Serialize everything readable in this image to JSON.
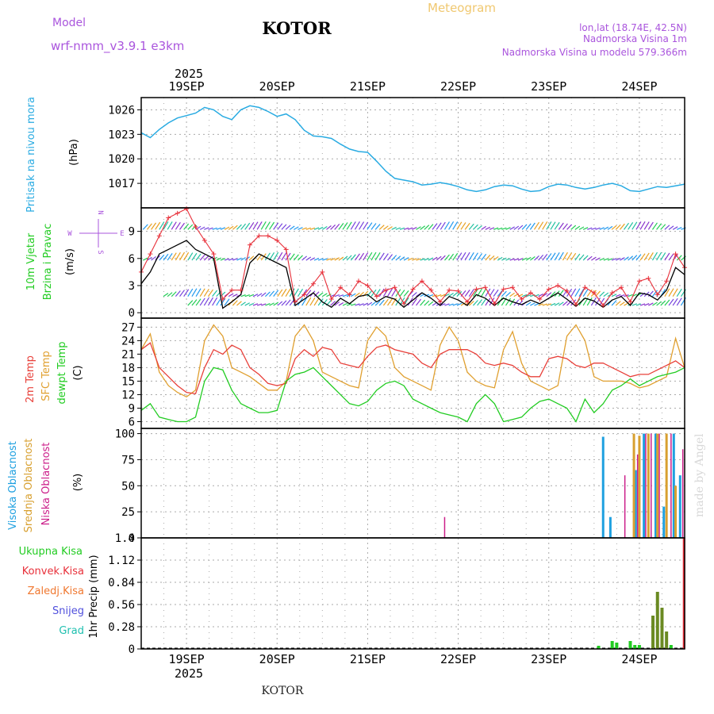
{
  "header": {
    "model_label": "Model",
    "model_name": "wrf-nmm_v3.9.1  e3km",
    "station": "KOTOR",
    "meteogram": "Meteogram",
    "lonlat": "lon,lat (18.74E, 42.5N)",
    "elevation": "Nadmorska Visina 1m",
    "model_elevation": "Nadmorska Visina u modelu 579.366m",
    "footer_station": "KOTOR",
    "credit": "made by Angel"
  },
  "time_axis": {
    "year": "2025",
    "days": [
      "19SEP",
      "20SEP",
      "21SEP",
      "22SEP",
      "23SEP",
      "24SEP"
    ]
  },
  "colors": {
    "pressure": "#29abe2",
    "wind_speed": "#000000",
    "gust": "#e8303a",
    "t2m": "#e8403a",
    "sfc": "#e0a030",
    "dew": "#22cc22",
    "cloud_high": "#1ea0e0",
    "cloud_mid": "#d8a030",
    "cloud_low": "#cc1f8a",
    "precip_total": "#22cc22",
    "precip_conv": "#e8303a",
    "precip_frz": "#f07830",
    "snow": "#5050dd",
    "grad": "#20c0b0"
  },
  "chart_data": [
    {
      "type": "line",
      "panel": "pressure",
      "title": "Pritisak na nivou mora",
      "ylabel": "(hPa)",
      "ylim": [
        1014,
        1027.5
      ],
      "yticks": [
        1017,
        1020,
        1023,
        1026
      ],
      "x_unit": "days from 19SEP 00UTC",
      "xlim": [
        -0.5,
        5.5
      ],
      "x": [
        -0.5,
        -0.4,
        -0.3,
        -0.2,
        -0.1,
        0,
        0.1,
        0.2,
        0.3,
        0.4,
        0.5,
        0.6,
        0.7,
        0.8,
        0.9,
        1.0,
        1.1,
        1.2,
        1.3,
        1.4,
        1.5,
        1.6,
        1.7,
        1.8,
        1.9,
        2.0,
        2.1,
        2.2,
        2.3,
        2.4,
        2.5,
        2.6,
        2.7,
        2.8,
        2.9,
        3.0,
        3.1,
        3.2,
        3.3,
        3.4,
        3.5,
        3.6,
        3.7,
        3.8,
        3.9,
        4.0,
        4.1,
        4.2,
        4.3,
        4.4,
        4.5,
        4.6,
        4.7,
        4.8,
        4.9,
        5.0,
        5.1,
        5.2,
        5.3,
        5.4,
        5.5
      ],
      "y": [
        1023.2,
        1022.6,
        1023.6,
        1024.4,
        1025.0,
        1025.3,
        1025.6,
        1026.3,
        1026.0,
        1025.2,
        1024.8,
        1026.0,
        1026.5,
        1026.3,
        1025.8,
        1025.2,
        1025.5,
        1024.8,
        1023.5,
        1022.8,
        1022.7,
        1022.5,
        1021.8,
        1021.2,
        1020.9,
        1020.8,
        1019.7,
        1018.5,
        1017.6,
        1017.4,
        1017.2,
        1016.8,
        1016.9,
        1017.1,
        1016.9,
        1016.6,
        1016.2,
        1016.0,
        1016.2,
        1016.6,
        1016.8,
        1016.7,
        1016.3,
        1016.0,
        1016.1,
        1016.6,
        1016.9,
        1016.8,
        1016.5,
        1016.3,
        1016.5,
        1016.8,
        1017.0,
        1016.7,
        1016.1,
        1016.0,
        1016.3,
        1016.6,
        1016.5,
        1016.7,
        1016.9
      ]
    },
    {
      "type": "line",
      "panel": "wind",
      "title": "10m Vjetar",
      "subtitle": "Brzina i Pravac",
      "ylabel": "(m/s)",
      "compass": [
        "N",
        "W",
        "E",
        "S"
      ],
      "ylim": [
        -0.6,
        11.6
      ],
      "yticks": [
        0,
        3,
        6,
        9
      ],
      "xlim": [
        -0.5,
        5.5
      ],
      "barb_levels": [
        0.8,
        1.8,
        5.8,
        9.2
      ],
      "series": [
        {
          "name": "speed",
          "x": [
            -0.5,
            -0.4,
            -0.3,
            -0.2,
            -0.1,
            0,
            0.1,
            0.2,
            0.3,
            0.4,
            0.5,
            0.6,
            0.7,
            0.8,
            0.9,
            1.0,
            1.1,
            1.2,
            1.3,
            1.4,
            1.5,
            1.6,
            1.7,
            1.8,
            1.9,
            2.0,
            2.1,
            2.2,
            2.3,
            2.4,
            2.5,
            2.6,
            2.7,
            2.8,
            2.9,
            3.0,
            3.1,
            3.2,
            3.3,
            3.4,
            3.5,
            3.6,
            3.7,
            3.8,
            3.9,
            4.0,
            4.1,
            4.2,
            4.3,
            4.4,
            4.5,
            4.6,
            4.7,
            4.8,
            4.9,
            5.0,
            5.1,
            5.2,
            5.3,
            5.4,
            5.5
          ],
          "values": [
            3.2,
            4.5,
            6.5,
            7.0,
            7.5,
            8.0,
            7.0,
            6.5,
            6.0,
            0.5,
            1.2,
            2.0,
            5.5,
            6.5,
            6.0,
            5.5,
            5.0,
            0.8,
            1.5,
            2.2,
            1.2,
            0.6,
            1.6,
            1.0,
            1.8,
            2.0,
            1.2,
            1.8,
            1.5,
            0.6,
            1.4,
            2.2,
            1.6,
            0.8,
            1.8,
            1.4,
            0.8,
            2.0,
            1.6,
            0.8,
            1.6,
            1.2,
            0.9,
            1.4,
            1.0,
            1.6,
            2.2,
            1.5,
            0.7,
            1.6,
            1.3,
            0.6,
            1.4,
            1.8,
            0.8,
            2.2,
            2.0,
            1.4,
            2.5,
            5.0,
            4.2
          ]
        },
        {
          "name": "gust",
          "x": [
            -0.5,
            -0.4,
            -0.3,
            -0.2,
            -0.1,
            0,
            0.1,
            0.2,
            0.3,
            0.4,
            0.5,
            0.6,
            0.7,
            0.8,
            0.9,
            1.0,
            1.1,
            1.2,
            1.3,
            1.4,
            1.5,
            1.6,
            1.7,
            1.8,
            1.9,
            2.0,
            2.1,
            2.2,
            2.3,
            2.4,
            2.5,
            2.6,
            2.7,
            2.8,
            2.9,
            3.0,
            3.1,
            3.2,
            3.3,
            3.4,
            3.5,
            3.6,
            3.7,
            3.8,
            3.9,
            4.0,
            4.1,
            4.2,
            4.3,
            4.4,
            4.5,
            4.6,
            4.7,
            4.8,
            4.9,
            5.0,
            5.1,
            5.2,
            5.3,
            5.4,
            5.5
          ],
          "values": [
            4.5,
            6.5,
            8.5,
            10.5,
            11.0,
            11.5,
            9.5,
            8.0,
            6.5,
            1.5,
            2.5,
            2.5,
            7.5,
            8.5,
            8.5,
            8.0,
            7.0,
            1.2,
            2.0,
            3.2,
            4.5,
            1.5,
            2.8,
            2.0,
            3.5,
            3.0,
            1.8,
            2.5,
            2.8,
            1.0,
            2.6,
            3.5,
            2.5,
            1.2,
            2.5,
            2.4,
            1.2,
            2.6,
            2.8,
            1.0,
            2.6,
            2.8,
            1.5,
            2.2,
            1.5,
            2.6,
            3.0,
            2.4,
            0.9,
            2.8,
            2.2,
            0.8,
            2.2,
            2.8,
            1.2,
            3.5,
            3.8,
            2.0,
            3.5,
            6.5,
            5.0
          ]
        }
      ]
    },
    {
      "type": "line",
      "panel": "temperature",
      "title": "2m Temp",
      "subtitle": "SFC Temp",
      "subtitle2": "dewpt Temp",
      "ylabel": "(C)",
      "ylim": [
        4.5,
        29
      ],
      "yticks": [
        6,
        9,
        12,
        15,
        18,
        21,
        24,
        27
      ],
      "xlim": [
        -0.5,
        5.5
      ],
      "series": [
        {
          "name": "t2m",
          "x": [
            -0.5,
            -0.4,
            -0.3,
            -0.2,
            -0.1,
            0,
            0.1,
            0.2,
            0.3,
            0.4,
            0.5,
            0.6,
            0.7,
            0.8,
            0.9,
            1.0,
            1.1,
            1.2,
            1.3,
            1.4,
            1.5,
            1.6,
            1.7,
            1.8,
            1.9,
            2.0,
            2.1,
            2.2,
            2.3,
            2.4,
            2.5,
            2.6,
            2.7,
            2.8,
            2.9,
            3.0,
            3.1,
            3.2,
            3.3,
            3.4,
            3.5,
            3.6,
            3.7,
            3.8,
            3.9,
            4.0,
            4.1,
            4.2,
            4.3,
            4.4,
            4.5,
            4.6,
            4.7,
            4.8,
            4.9,
            5.0,
            5.1,
            5.2,
            5.3,
            5.4,
            5.5
          ],
          "values": [
            22,
            23.5,
            18,
            16,
            14,
            12.5,
            12.2,
            18,
            22,
            21,
            23,
            22,
            18,
            16.5,
            14.5,
            14,
            14.5,
            20,
            22,
            20.5,
            22.5,
            22,
            19,
            18.5,
            18,
            20.5,
            22.5,
            23,
            22,
            21.5,
            21,
            19,
            18,
            21,
            22,
            22,
            22,
            21,
            19,
            18.5,
            19,
            18.5,
            17,
            16,
            16,
            20,
            20.5,
            20,
            18.5,
            18,
            19,
            19,
            18,
            17,
            16,
            16.5,
            16.5,
            17.5,
            18.5,
            19.5,
            18
          ]
        },
        {
          "name": "sfc",
          "x": [
            -0.5,
            -0.4,
            -0.3,
            -0.2,
            -0.1,
            0,
            0.1,
            0.2,
            0.3,
            0.4,
            0.5,
            0.6,
            0.7,
            0.8,
            0.9,
            1.0,
            1.1,
            1.2,
            1.3,
            1.4,
            1.5,
            1.6,
            1.7,
            1.8,
            1.9,
            2.0,
            2.1,
            2.2,
            2.3,
            2.4,
            2.5,
            2.6,
            2.7,
            2.8,
            2.9,
            3.0,
            3.1,
            3.2,
            3.3,
            3.4,
            3.5,
            3.6,
            3.7,
            3.8,
            3.9,
            4.0,
            4.1,
            4.2,
            4.3,
            4.4,
            4.5,
            4.6,
            4.7,
            4.8,
            4.9,
            5.0,
            5.1,
            5.2,
            5.3,
            5.4,
            5.5
          ],
          "values": [
            22,
            25.5,
            17,
            14,
            12.5,
            11.5,
            13,
            24,
            27.5,
            25,
            18,
            17,
            16,
            14.5,
            13,
            13,
            15,
            25,
            27.5,
            24,
            17,
            16,
            15,
            14,
            13.5,
            24,
            27,
            25,
            18,
            16,
            15,
            14,
            13,
            23,
            27,
            24,
            17,
            15,
            14,
            13.5,
            22,
            26,
            19,
            15,
            14,
            13,
            14,
            25,
            27.5,
            24,
            16,
            15,
            15,
            15,
            14.5,
            13.5,
            14,
            15,
            16,
            24.5,
            18
          ]
        },
        {
          "name": "dew",
          "x": [
            -0.5,
            -0.4,
            -0.3,
            -0.2,
            -0.1,
            0,
            0.1,
            0.2,
            0.3,
            0.4,
            0.5,
            0.6,
            0.7,
            0.8,
            0.9,
            1.0,
            1.1,
            1.2,
            1.3,
            1.4,
            1.5,
            1.6,
            1.7,
            1.8,
            1.9,
            2.0,
            2.1,
            2.2,
            2.3,
            2.4,
            2.5,
            2.6,
            2.7,
            2.8,
            2.9,
            3.0,
            3.1,
            3.2,
            3.3,
            3.4,
            3.5,
            3.6,
            3.7,
            3.8,
            3.9,
            4.0,
            4.1,
            4.2,
            4.3,
            4.4,
            4.5,
            4.6,
            4.7,
            4.8,
            4.9,
            5.0,
            5.1,
            5.2,
            5.3,
            5.4,
            5.5
          ],
          "values": [
            8.5,
            10,
            7,
            6.5,
            6,
            6,
            7,
            15,
            18,
            17.5,
            13,
            10,
            9,
            8,
            8,
            8.5,
            15,
            16.5,
            17,
            18,
            16,
            14,
            12,
            10,
            9.5,
            10.5,
            13,
            14.5,
            15,
            14,
            11,
            10,
            9,
            8,
            7.5,
            7,
            6,
            10,
            12,
            10,
            6,
            6.5,
            7,
            9,
            10.5,
            11,
            10,
            9,
            6,
            11,
            8,
            10,
            13,
            14,
            15.5,
            14,
            15,
            16,
            16.5,
            17,
            18
          ]
        }
      ]
    },
    {
      "type": "bar",
      "panel": "clouds",
      "title": "Visoka Oblacnost",
      "subtitle": "Srednja Oblacnost",
      "subtitle2": "Niska Oblacnost",
      "ylabel": "(%)",
      "ylim": [
        0,
        105
      ],
      "yticks": [
        0,
        25,
        50,
        75,
        100
      ],
      "xlim": [
        -0.5,
        5.5
      ],
      "series": [
        {
          "name": "high",
          "x": [
            4.6,
            4.68,
            4.96,
            5.05,
            5.18,
            5.27,
            5.38,
            5.45
          ],
          "values": [
            97,
            20,
            65,
            100,
            100,
            30,
            100,
            60
          ]
        },
        {
          "name": "mid",
          "x": [
            4.94,
            5.0,
            5.1,
            5.2,
            5.3,
            5.4
          ],
          "values": [
            100,
            98,
            100,
            100,
            100,
            50
          ]
        },
        {
          "name": "low",
          "x": [
            2.85,
            4.84,
            4.98,
            5.07,
            5.13,
            5.22,
            5.35,
            5.48
          ],
          "values": [
            20,
            60,
            80,
            100,
            100,
            100,
            100,
            85
          ]
        }
      ]
    },
    {
      "type": "bar",
      "panel": "precip",
      "title": "Ukupna Kisa",
      "labels": [
        "Konvek.Kisa",
        "Zaledj.Kisa",
        "Snijeg",
        "Grad"
      ],
      "ylabel": "1hr Precip (mm)",
      "ylim": [
        0,
        1.4
      ],
      "yticks": [
        0,
        0.28,
        0.56,
        0.84,
        1.12,
        1.4
      ],
      "xlim": [
        -0.5,
        5.5
      ],
      "series": [
        {
          "name": "total",
          "x": [
            4.55,
            4.7,
            4.75,
            4.9,
            4.95,
            5.0,
            5.15,
            5.2,
            5.25,
            5.3,
            5.35
          ],
          "values": [
            0.04,
            0.1,
            0.08,
            0.1,
            0.05,
            0.05,
            0.42,
            0.72,
            0.52,
            0.22,
            0.05
          ]
        },
        {
          "name": "convective",
          "x": [
            5.48
          ],
          "values": [
            1.4
          ]
        }
      ]
    }
  ]
}
